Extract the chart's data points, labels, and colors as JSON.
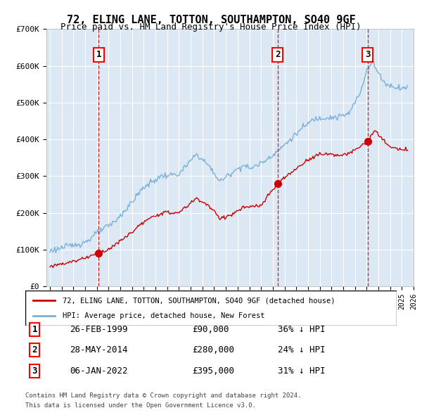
{
  "title": "72, ELING LANE, TOTTON, SOUTHAMPTON, SO40 9GF",
  "subtitle": "Price paid vs. HM Land Registry's House Price Index (HPI)",
  "background_color": "#dce9f5",
  "plot_bg_color": "#dce9f5",
  "hpi_color": "#7ab0d8",
  "price_color": "#cc0000",
  "purchase_marker_color": "#cc0000",
  "vline_color": "#cc0000",
  "xlabel": "",
  "ylabel": "",
  "ylim": [
    0,
    700000
  ],
  "yticks": [
    0,
    100000,
    200000,
    300000,
    400000,
    500000,
    600000,
    700000
  ],
  "ytick_labels": [
    "£0",
    "£100K",
    "£200K",
    "£300K",
    "£400K",
    "£500K",
    "£600K",
    "£700K"
  ],
  "x_start_year": 1995,
  "x_end_year": 2025,
  "purchases": [
    {
      "date": "1999-02-26",
      "price": 90000,
      "label": "1",
      "hpi_pct": "36%"
    },
    {
      "date": "2014-05-28",
      "price": 280000,
      "label": "2",
      "hpi_pct": "24%"
    },
    {
      "date": "2022-01-06",
      "price": 395000,
      "label": "3",
      "hpi_pct": "31%"
    }
  ],
  "legend_line1": "72, ELING LANE, TOTTON, SOUTHAMPTON, SO40 9GF (detached house)",
  "legend_line2": "HPI: Average price, detached house, New Forest",
  "table_rows": [
    {
      "num": "1",
      "date": "26-FEB-1999",
      "price": "£90,000",
      "pct": "36% ↓ HPI"
    },
    {
      "num": "2",
      "date": "28-MAY-2014",
      "price": "£280,000",
      "pct": "24% ↓ HPI"
    },
    {
      "num": "3",
      "date": "06-JAN-2022",
      "price": "£395,000",
      "pct": "31% ↓ HPI"
    }
  ],
  "footer1": "Contains HM Land Registry data © Crown copyright and database right 2024.",
  "footer2": "This data is licensed under the Open Government Licence v3.0."
}
